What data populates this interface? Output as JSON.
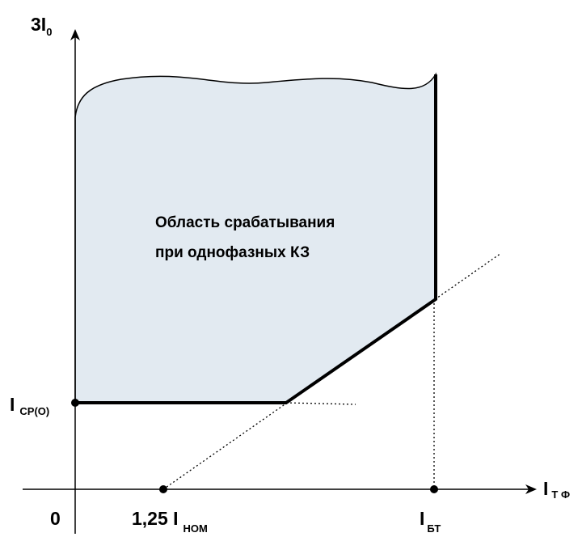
{
  "diagram": {
    "y_axis_label": {
      "main": "3I",
      "sub": "0"
    },
    "x_axis_label": {
      "main": "I",
      "sub": "Т Ф"
    },
    "origin_label": "0",
    "x_tick_nom": {
      "main": "1,25 I",
      "sub": "НОМ"
    },
    "x_tick_bt": {
      "main": "I",
      "sub": "БТ"
    },
    "y_tick_cp": {
      "main": "I",
      "sub": "СР(О)"
    },
    "region_label_line1": "Область срабатывания",
    "region_label_line2": "при однофазных КЗ",
    "colors": {
      "region_fill": "#e2eaf1",
      "boundary": "#000000",
      "axes": "#000000"
    }
  }
}
